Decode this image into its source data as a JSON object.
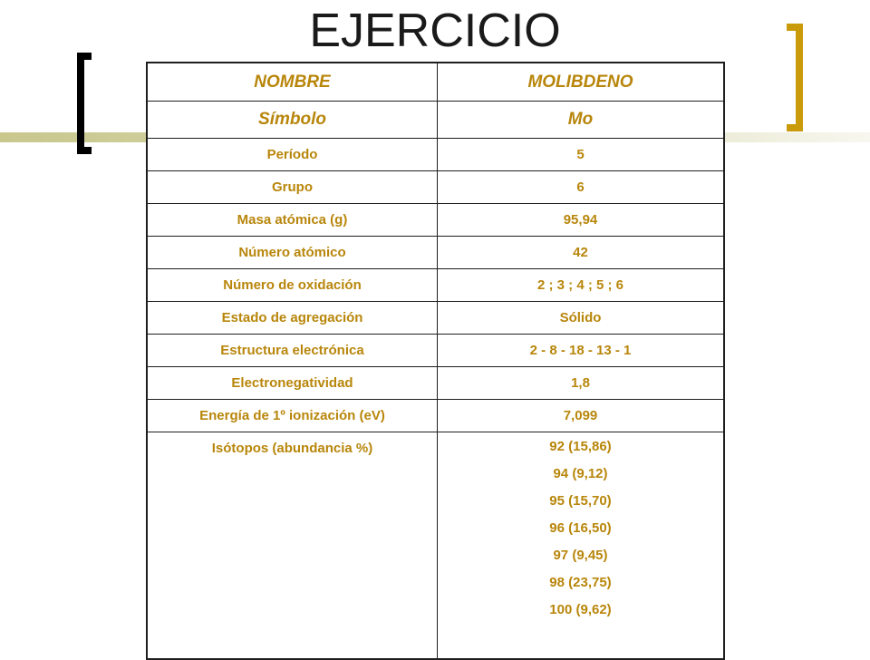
{
  "slide": {
    "title": "EJERCICIO"
  },
  "table": {
    "header": {
      "label": "NOMBRE",
      "value": "MOLIBDENO"
    },
    "symbol": {
      "label": "Símbolo",
      "value": "Mo"
    },
    "rows": [
      {
        "label": "Período",
        "value": "5"
      },
      {
        "label": "Grupo",
        "value": "6"
      },
      {
        "label": "Masa atómica (g)",
        "value": "95,94"
      },
      {
        "label": "Número atómico",
        "value": "42"
      },
      {
        "label": "Número de oxidación",
        "value": "2 ; 3 ; 4 ; 5 ; 6"
      },
      {
        "label": "Estado de agregación",
        "value": "Sólido"
      },
      {
        "label": "Estructura electrónica",
        "value": "2 - 8 - 18 - 13 -  1"
      },
      {
        "label": "Electronegatividad",
        "value": "1,8"
      },
      {
        "label": "Energía de 1º ionización (eV)",
        "value": "7,099"
      }
    ],
    "isotopes": {
      "label": "Isótopos (abundancia %)",
      "values": [
        "92 (15,86)",
        "94  (9,12)",
        "95  (15,70)",
        "96 (16,50)",
        "97 (9,45)",
        "98  (23,75)",
        "100   (9,62)"
      ]
    }
  },
  "colors": {
    "text_accent": "#b8860b",
    "bracket_right": "#c99a0a",
    "bracket_left": "#000000",
    "title": "#1a1a1a"
  }
}
